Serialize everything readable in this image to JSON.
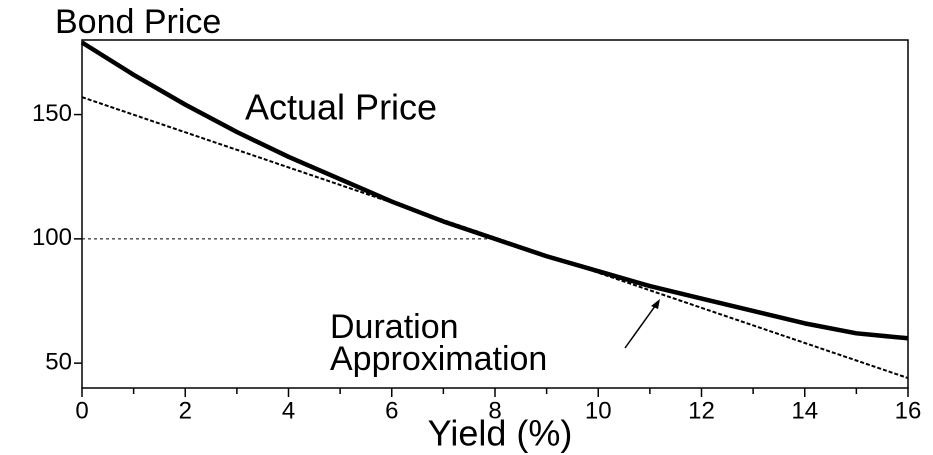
{
  "chart_data": {
    "type": "line",
    "title": "Bond Price",
    "x_label": "Yield (%)",
    "x": [
      0,
      1,
      2,
      3,
      4,
      5,
      6,
      7,
      8,
      9,
      10,
      11,
      12,
      13,
      14,
      15,
      16
    ],
    "series": [
      {
        "name": "Actual Price",
        "color": "#000000",
        "style": "solid",
        "x": [
          0,
          1,
          2,
          3,
          4,
          5,
          6,
          7,
          8,
          9,
          10,
          11,
          12,
          13,
          14,
          15,
          16
        ],
        "values": [
          179,
          166,
          154,
          143,
          133,
          124,
          115,
          107,
          100,
          93,
          87,
          81,
          76,
          71,
          66,
          62,
          60
        ]
      },
      {
        "color": "#000000",
        "style": "dotted",
        "x": [
          0,
          16
        ],
        "values": [
          157,
          44
        ]
      }
    ],
    "annotations": [
      "Duration",
      "Approximation"
    ],
    "guide": {
      "x": [
        0,
        8
      ],
      "y": 100
    },
    "xlim": [
      0,
      16
    ],
    "ylim": [
      40,
      180
    ],
    "xticks": [
      0,
      2,
      4,
      6,
      8,
      10,
      12,
      14,
      16
    ],
    "xminorticks": [
      1,
      3,
      5,
      7,
      9,
      11,
      13,
      15
    ],
    "yticks": [
      50,
      100,
      150
    ],
    "grid": false
  }
}
